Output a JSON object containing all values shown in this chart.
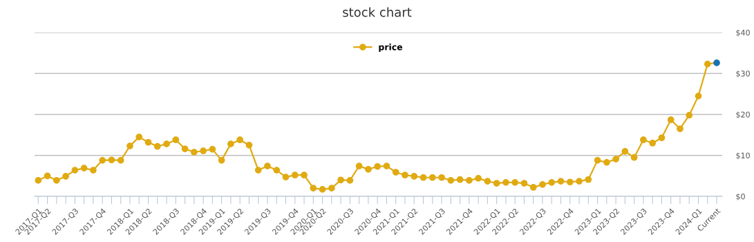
{
  "chart_data": {
    "type": "line",
    "title": "stock chart",
    "categories": [
      "2017-Q1",
      "2017-Q2",
      null,
      null,
      "2017-Q3",
      null,
      null,
      "2017-Q4",
      null,
      null,
      "2018-Q1",
      null,
      "2018-Q2",
      null,
      null,
      "2018-Q3",
      null,
      null,
      "2018-Q4",
      null,
      "2019-Q1",
      null,
      "2019-Q2",
      null,
      null,
      "2019-Q3",
      null,
      null,
      "2019-Q4",
      null,
      "2020-Q1",
      "2020-Q2",
      null,
      null,
      "2020-Q3",
      null,
      null,
      "2020-Q4",
      null,
      "2021-Q1",
      null,
      "2021-Q2",
      null,
      null,
      "2021-Q3",
      null,
      null,
      "2021-Q4",
      null,
      null,
      "2022-Q1",
      null,
      "2022-Q2",
      null,
      null,
      "2022-Q3",
      null,
      null,
      "2022-Q4",
      null,
      null,
      "2023-Q1",
      null,
      "2023-Q2",
      null,
      null,
      "2023-Q3",
      null,
      null,
      "2023-Q4",
      null,
      null,
      "2024-Q1",
      null,
      "Current"
    ],
    "series": [
      {
        "name": "price",
        "color": "#e0aa12",
        "colors": [
          "#e0aa12",
          "#e0aa12",
          "#e0aa12",
          "#e0aa12",
          "#e0aa12",
          "#e0aa12",
          "#e0aa12",
          "#e0aa12",
          "#e0aa12",
          "#e0aa12",
          "#e0aa12",
          "#e0aa12",
          "#e0aa12",
          "#e0aa12",
          "#e0aa12",
          "#e0aa12",
          "#e0aa12",
          "#e0aa12",
          "#e0aa12",
          "#e0aa12",
          "#e0aa12",
          "#e0aa12",
          "#e0aa12",
          "#e0aa12",
          "#e0aa12",
          "#e0aa12",
          "#e0aa12",
          "#e0aa12",
          "#e0aa12",
          "#e0aa12",
          "#e0aa12",
          "#e0aa12",
          "#e0aa12",
          "#e0aa12",
          "#e0aa12",
          "#e0aa12",
          "#e0aa12",
          "#e0aa12",
          "#e0aa12",
          "#e0aa12",
          "#e0aa12",
          "#e0aa12",
          "#e0aa12",
          "#e0aa12",
          "#e0aa12",
          "#e0aa12",
          "#e0aa12",
          "#e0aa12",
          "#e0aa12",
          "#e0aa12",
          "#e0aa12",
          "#e0aa12",
          "#e0aa12",
          "#e0aa12",
          "#e0aa12",
          "#e0aa12",
          "#e0aa12",
          "#e0aa12",
          "#e0aa12",
          "#e0aa12",
          "#e0aa12",
          "#e0aa12",
          "#e0aa12",
          "#e0aa12",
          "#e0aa12",
          "#e0aa12",
          "#e0aa12",
          "#e0aa12",
          "#e0aa12",
          "#e0aa12",
          "#e0aa12",
          "#e0aa12",
          "#e0aa12",
          "#e0aa12",
          "#1a73b0"
        ],
        "values": [
          3.9,
          5.0,
          3.9,
          4.9,
          6.4,
          6.9,
          6.4,
          8.8,
          8.9,
          8.8,
          12.3,
          14.5,
          13.2,
          12.2,
          12.8,
          13.8,
          11.6,
          10.8,
          11.1,
          11.5,
          8.8,
          12.8,
          13.8,
          12.5,
          6.4,
          7.4,
          6.4,
          4.7,
          5.2,
          5.2,
          2.0,
          1.7,
          2.0,
          4.0,
          3.9,
          7.4,
          6.6,
          7.3,
          7.4,
          5.9,
          5.2,
          4.9,
          4.6,
          4.6,
          4.6,
          3.9,
          4.1,
          3.9,
          4.4,
          3.7,
          3.2,
          3.4,
          3.4,
          3.2,
          2.2,
          2.9,
          3.4,
          3.7,
          3.5,
          3.7,
          4.1,
          8.8,
          8.3,
          9.1,
          11.0,
          9.5,
          13.8,
          13.0,
          14.3,
          18.7,
          16.5,
          19.8,
          24.5,
          32.3,
          32.6
        ]
      }
    ],
    "ylim": [
      0,
      40
    ],
    "yticks": [
      {
        "value": 0,
        "label": "$0"
      },
      {
        "value": 10,
        "label": "$10"
      },
      {
        "value": 20,
        "label": "$20"
      },
      {
        "value": 30,
        "label": "$30"
      },
      {
        "value": 40,
        "label": "$40"
      }
    ],
    "grid": "y",
    "legend": "top",
    "marker": "circle",
    "line_style": "solid"
  }
}
